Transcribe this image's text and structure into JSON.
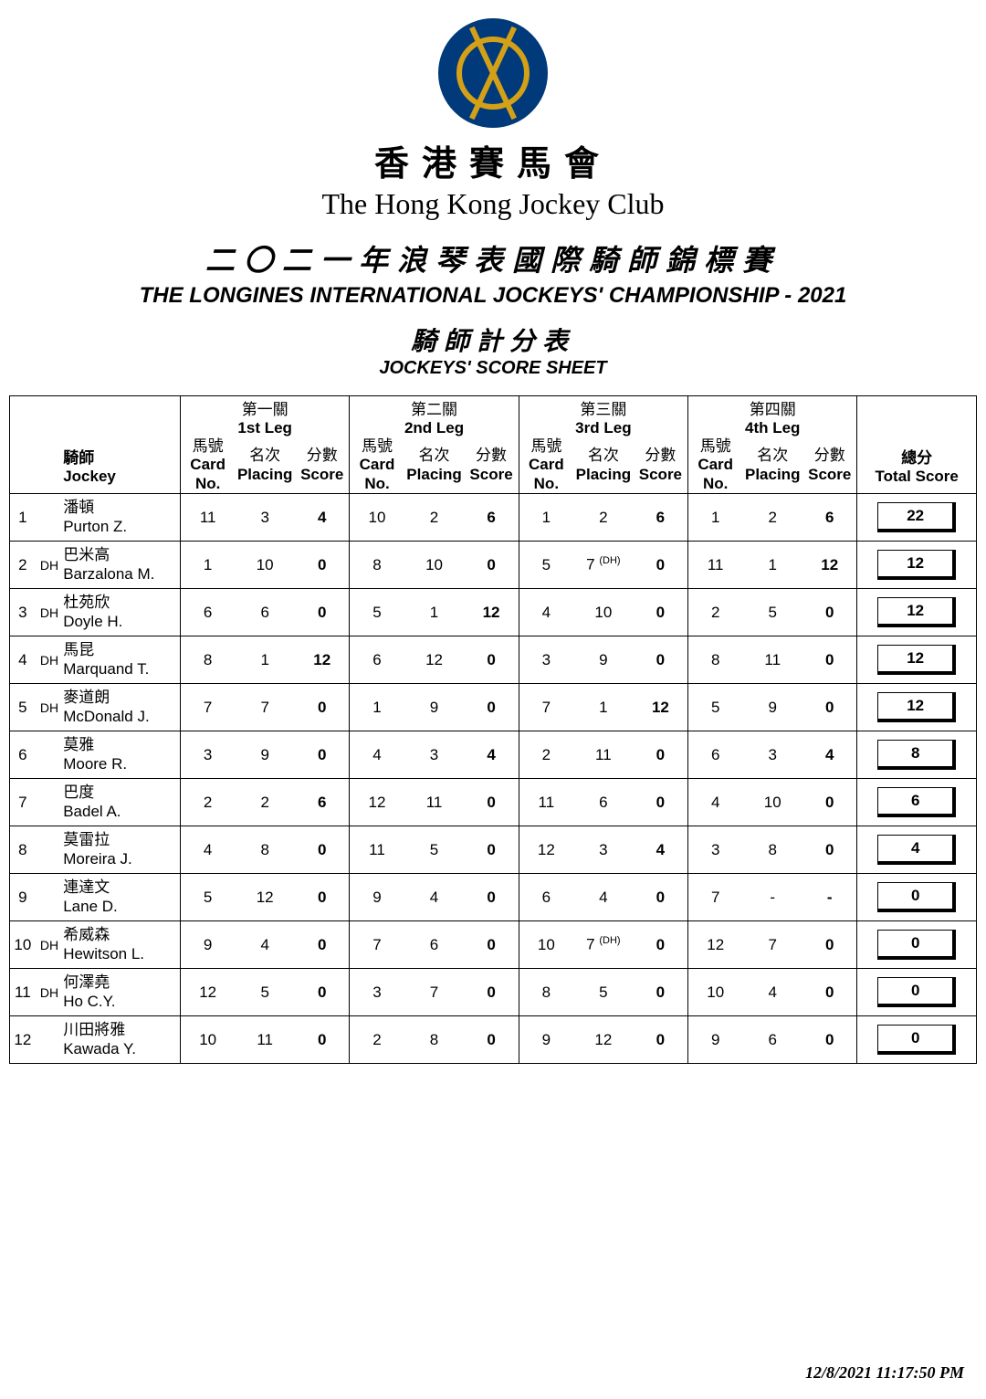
{
  "header": {
    "org_zh": "香港賽馬會",
    "org_en": "The Hong Kong Jockey Club",
    "event_zh": "二〇二一年浪琴表國際騎師錦標賽",
    "event_en": "THE LONGINES INTERNATIONAL JOCKEYS' CHAMPIONSHIP - 2021",
    "sheet_zh": "騎師計分表",
    "sheet_en": "JOCKEYS' SCORE SHEET"
  },
  "columns": {
    "jockey_zh": "騎師",
    "jockey_en": "Jockey",
    "legs": [
      {
        "zh": "第一關",
        "en": "1st Leg"
      },
      {
        "zh": "第二關",
        "en": "2nd Leg"
      },
      {
        "zh": "第三關",
        "en": "3rd Leg"
      },
      {
        "zh": "第四關",
        "en": "4th Leg"
      }
    ],
    "card_zh": "馬號",
    "card_en": "Card No.",
    "placing_zh": "名次",
    "placing_en": "Placing",
    "score_zh": "分數",
    "score_en": "Score",
    "total_zh": "總分",
    "total_en": "Total Score"
  },
  "rows": [
    {
      "rank": "1",
      "dh": "",
      "zh": "潘頓",
      "en": "Purton Z.",
      "legs": [
        {
          "c": "11",
          "p": "3",
          "s": "4"
        },
        {
          "c": "10",
          "p": "2",
          "s": "6"
        },
        {
          "c": "1",
          "p": "2",
          "s": "6"
        },
        {
          "c": "1",
          "p": "2",
          "s": "6"
        }
      ],
      "total": "22"
    },
    {
      "rank": "2",
      "dh": "DH",
      "zh": "巴米高",
      "en": "Barzalona M.",
      "legs": [
        {
          "c": "1",
          "p": "10",
          "s": "0"
        },
        {
          "c": "8",
          "p": "10",
          "s": "0"
        },
        {
          "c": "5",
          "p": "7",
          "pdh": "(DH)",
          "s": "0"
        },
        {
          "c": "11",
          "p": "1",
          "s": "12"
        }
      ],
      "total": "12"
    },
    {
      "rank": "3",
      "dh": "DH",
      "zh": "杜苑欣",
      "en": "Doyle H.",
      "legs": [
        {
          "c": "6",
          "p": "6",
          "s": "0"
        },
        {
          "c": "5",
          "p": "1",
          "s": "12"
        },
        {
          "c": "4",
          "p": "10",
          "s": "0"
        },
        {
          "c": "2",
          "p": "5",
          "s": "0"
        }
      ],
      "total": "12"
    },
    {
      "rank": "4",
      "dh": "DH",
      "zh": "馬昆",
      "en": "Marquand T.",
      "legs": [
        {
          "c": "8",
          "p": "1",
          "s": "12"
        },
        {
          "c": "6",
          "p": "12",
          "s": "0"
        },
        {
          "c": "3",
          "p": "9",
          "s": "0"
        },
        {
          "c": "8",
          "p": "11",
          "s": "0"
        }
      ],
      "total": "12"
    },
    {
      "rank": "5",
      "dh": "DH",
      "zh": "麥道朗",
      "en": "McDonald J.",
      "legs": [
        {
          "c": "7",
          "p": "7",
          "s": "0"
        },
        {
          "c": "1",
          "p": "9",
          "s": "0"
        },
        {
          "c": "7",
          "p": "1",
          "s": "12"
        },
        {
          "c": "5",
          "p": "9",
          "s": "0"
        }
      ],
      "total": "12"
    },
    {
      "rank": "6",
      "dh": "",
      "zh": "莫雅",
      "en": "Moore R.",
      "legs": [
        {
          "c": "3",
          "p": "9",
          "s": "0"
        },
        {
          "c": "4",
          "p": "3",
          "s": "4"
        },
        {
          "c": "2",
          "p": "11",
          "s": "0"
        },
        {
          "c": "6",
          "p": "3",
          "s": "4"
        }
      ],
      "total": "8"
    },
    {
      "rank": "7",
      "dh": "",
      "zh": "巴度",
      "en": "Badel A.",
      "legs": [
        {
          "c": "2",
          "p": "2",
          "s": "6"
        },
        {
          "c": "12",
          "p": "11",
          "s": "0"
        },
        {
          "c": "11",
          "p": "6",
          "s": "0"
        },
        {
          "c": "4",
          "p": "10",
          "s": "0"
        }
      ],
      "total": "6"
    },
    {
      "rank": "8",
      "dh": "",
      "zh": "莫雷拉",
      "en": "Moreira J.",
      "legs": [
        {
          "c": "4",
          "p": "8",
          "s": "0"
        },
        {
          "c": "11",
          "p": "5",
          "s": "0"
        },
        {
          "c": "12",
          "p": "3",
          "s": "4"
        },
        {
          "c": "3",
          "p": "8",
          "s": "0"
        }
      ],
      "total": "4"
    },
    {
      "rank": "9",
      "dh": "",
      "zh": "連達文",
      "en": "Lane D.",
      "legs": [
        {
          "c": "5",
          "p": "12",
          "s": "0"
        },
        {
          "c": "9",
          "p": "4",
          "s": "0"
        },
        {
          "c": "6",
          "p": "4",
          "s": "0"
        },
        {
          "c": "7",
          "p": "-",
          "s": "-"
        }
      ],
      "total": "0"
    },
    {
      "rank": "10",
      "dh": "DH",
      "zh": "希威森",
      "en": "Hewitson L.",
      "legs": [
        {
          "c": "9",
          "p": "4",
          "s": "0"
        },
        {
          "c": "7",
          "p": "6",
          "s": "0"
        },
        {
          "c": "10",
          "p": "7",
          "pdh": "(DH)",
          "s": "0"
        },
        {
          "c": "12",
          "p": "7",
          "s": "0"
        }
      ],
      "total": "0"
    },
    {
      "rank": "11",
      "dh": "DH",
      "zh": "何澤堯",
      "en": "Ho C.Y.",
      "legs": [
        {
          "c": "12",
          "p": "5",
          "s": "0"
        },
        {
          "c": "3",
          "p": "7",
          "s": "0"
        },
        {
          "c": "8",
          "p": "5",
          "s": "0"
        },
        {
          "c": "10",
          "p": "4",
          "s": "0"
        }
      ],
      "total": "0"
    },
    {
      "rank": "12",
      "dh": "",
      "zh": "川田將雅",
      "en": "Kawada Y.",
      "legs": [
        {
          "c": "10",
          "p": "11",
          "s": "0"
        },
        {
          "c": "2",
          "p": "8",
          "s": "0"
        },
        {
          "c": "9",
          "p": "12",
          "s": "0"
        },
        {
          "c": "9",
          "p": "6",
          "s": "0"
        }
      ],
      "total": "0"
    }
  ],
  "timestamp": "12/8/2021 11:17:50 PM"
}
